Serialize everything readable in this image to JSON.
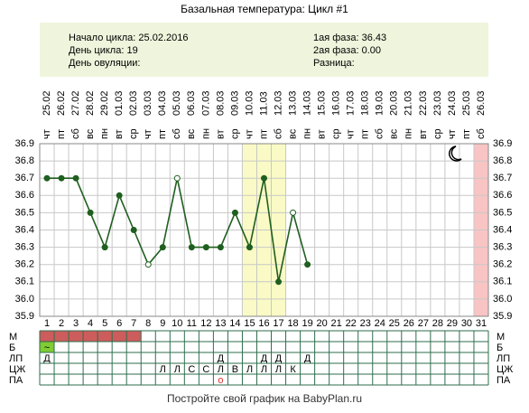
{
  "chart_data": {
    "type": "line",
    "title": "Базальная температура: Цикл #1",
    "info": {
      "left": [
        {
          "label": "Начало цикла:",
          "value": "25.02.2016"
        },
        {
          "label": "День цикла:",
          "value": "19"
        },
        {
          "label": "День овуляции:"
        }
      ],
      "right": [
        {
          "label": "1ая фаза:",
          "value": "36.43"
        },
        {
          "label": "2ая фаза:",
          "value": "0.00"
        },
        {
          "label": "Разница:"
        }
      ]
    },
    "x": [
      1,
      2,
      3,
      4,
      5,
      6,
      7,
      8,
      9,
      10,
      11,
      12,
      13,
      14,
      15,
      16,
      17,
      18,
      19,
      20,
      21,
      22,
      23,
      24,
      25,
      26,
      27,
      28,
      29,
      30,
      31
    ],
    "dates": [
      "25.02",
      "26.02",
      "27.02",
      "28.02",
      "29.02",
      "01.03",
      "02.03",
      "03.03",
      "04.03",
      "05.03",
      "06.03",
      "07.03",
      "08.03",
      "09.03",
      "10.03",
      "11.03",
      "12.03",
      "13.03",
      "14.03",
      "15.03",
      "16.03",
      "17.03",
      "18.03",
      "19.03",
      "20.03",
      "21.03",
      "22.03",
      "23.03",
      "24.03",
      "25.03",
      "26.03"
    ],
    "weekdays": [
      "чт",
      "пт",
      "сб",
      "вс",
      "пн",
      "вт",
      "ср",
      "чт",
      "пт",
      "сб",
      "вс",
      "пн",
      "вт",
      "ср",
      "чт",
      "пт",
      "сб",
      "вс",
      "пн",
      "вт",
      "ср",
      "чт",
      "пт",
      "сб",
      "вс",
      "пн",
      "вт",
      "ср",
      "чт",
      "пт",
      "сб"
    ],
    "series": [
      {
        "color": "#1f5f1f",
        "values": [
          36.7,
          36.7,
          36.7,
          36.5,
          36.3,
          36.6,
          36.4,
          36.2,
          36.3,
          36.7,
          36.3,
          36.3,
          36.3,
          36.5,
          36.3,
          36.7,
          36.1,
          36.5,
          36.2,
          null,
          null,
          null,
          null,
          null,
          null,
          null,
          null,
          null,
          null,
          null,
          null
        ],
        "hollow": [
          false,
          false,
          false,
          false,
          false,
          false,
          false,
          true,
          false,
          true,
          false,
          false,
          false,
          false,
          false,
          false,
          false,
          true,
          false,
          false,
          false,
          false,
          false,
          false,
          false,
          false,
          false,
          false,
          false,
          false,
          false
        ]
      }
    ],
    "xlim": [
      0.5,
      31.5
    ],
    "ylim": [
      35.9,
      36.9
    ],
    "yticks": [
      {
        "value": 35.9,
        "label": "35.9"
      },
      {
        "value": 36,
        "label": "36.0"
      },
      {
        "value": 36.1,
        "label": "36.1"
      },
      {
        "value": 36.2,
        "label": "36.2"
      },
      {
        "value": 36.3,
        "label": "36.3"
      },
      {
        "value": 36.4,
        "label": "36.4"
      },
      {
        "value": 36.5,
        "label": "36.5"
      },
      {
        "value": 36.6,
        "label": "36.6"
      },
      {
        "value": 36.7,
        "label": "36.7"
      },
      {
        "value": 36.8,
        "label": "36.8"
      },
      {
        "value": 36.9,
        "label": "36.9"
      }
    ],
    "grid": true,
    "highlight": {
      "from": 15,
      "to": 17,
      "color": "#fafac6"
    },
    "closed_day": {
      "day": 31,
      "color": "#f9c4c4"
    },
    "rows": [
      {
        "label": "М",
        "fill_days": [
          1,
          2,
          3,
          4,
          5,
          6,
          7
        ],
        "fill": "#cd5c5c",
        "entries": []
      },
      {
        "label": "Б",
        "fill_days": [
          1
        ],
        "fill": "#80cc33",
        "entries": [
          {
            "day": 1,
            "text": "~"
          }
        ]
      },
      {
        "label": "ЛП",
        "fill_days": [],
        "entries": [
          {
            "day": 1,
            "text": "Д"
          },
          {
            "day": 13,
            "text": "Д"
          },
          {
            "day": 16,
            "text": "Д"
          },
          {
            "day": 17,
            "text": "Д"
          },
          {
            "day": 19,
            "text": "Д"
          }
        ]
      },
      {
        "label": "ЦЖ",
        "fill_days": [],
        "entries": [
          {
            "day": 9,
            "text": "Л"
          },
          {
            "day": 10,
            "text": "Л"
          },
          {
            "day": 11,
            "text": "С"
          },
          {
            "day": 12,
            "text": "С"
          },
          {
            "day": 13,
            "text": "Л"
          },
          {
            "day": 14,
            "text": "В"
          },
          {
            "day": 15,
            "text": "Л"
          },
          {
            "day": 16,
            "text": "Л"
          },
          {
            "day": 17,
            "text": "Л"
          },
          {
            "day": 18,
            "text": "К"
          }
        ]
      },
      {
        "label": "ПА",
        "fill_days": [],
        "entries": [
          {
            "day": 13,
            "text": "о",
            "color": "#e03030"
          }
        ]
      }
    ],
    "footer": "Постройте свой график на BabyPlan.ru"
  }
}
